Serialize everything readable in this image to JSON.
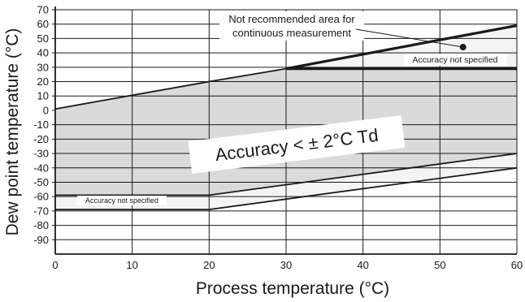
{
  "chart_data": {
    "type": "area",
    "xlabel": "Process temperature (°C)",
    "ylabel": "Dew point temperature (°C)",
    "xlim": [
      0,
      60
    ],
    "ylim": [
      -100,
      70
    ],
    "x_ticks": [
      0,
      10,
      20,
      30,
      40,
      50,
      60
    ],
    "y_ticks": [
      70,
      60,
      50,
      40,
      30,
      20,
      10,
      0,
      -10,
      -20,
      -30,
      -40,
      -50,
      -60,
      -70,
      -80,
      -90
    ],
    "grid": true,
    "regions": [
      {
        "label": "Accuracy < ± 2°C Td",
        "color": "#dadada",
        "points": [
          [
            0,
            1
          ],
          [
            20,
            20
          ],
          [
            30,
            29
          ],
          [
            60,
            29
          ],
          [
            60,
            -30
          ],
          [
            20,
            -59
          ],
          [
            0,
            -59
          ]
        ]
      },
      {
        "label": "Accuracy not specified",
        "position": "top-right",
        "color": "#f4f4f4",
        "points": [
          [
            30,
            29
          ],
          [
            60,
            59
          ],
          [
            60,
            29
          ]
        ]
      },
      {
        "label": "Accuracy not specified",
        "position": "bottom-left",
        "color": "#f4f4f4",
        "points": [
          [
            0,
            -59
          ],
          [
            20,
            -59
          ],
          [
            60,
            -30
          ],
          [
            60,
            -40
          ],
          [
            20,
            -69
          ],
          [
            0,
            -69
          ]
        ]
      }
    ],
    "lines": [
      {
        "name": "upper-limit",
        "points": [
          [
            0,
            1
          ],
          [
            20,
            20
          ],
          [
            30,
            29
          ],
          [
            60,
            59
          ]
        ]
      },
      {
        "name": "not-recommended-boundary",
        "points": [
          [
            30,
            29
          ],
          [
            60,
            59
          ]
        ],
        "emphasis": "thick"
      },
      {
        "name": "upper-accuracy-limit",
        "points": [
          [
            30,
            29
          ],
          [
            60,
            29
          ]
        ],
        "emphasis": "thick"
      },
      {
        "name": "lower-accuracy-limit",
        "points": [
          [
            0,
            -59
          ],
          [
            20,
            -59
          ],
          [
            60,
            -30
          ]
        ]
      },
      {
        "name": "lower-limit",
        "points": [
          [
            0,
            -69
          ],
          [
            20,
            -69
          ],
          [
            60,
            -40
          ]
        ]
      }
    ],
    "annotations": {
      "not_recommended": {
        "line1": "Not recommended area for",
        "line2": "continuous measurement",
        "points_to": [
          53,
          44
        ]
      },
      "main_label": "Accuracy < ± 2°C Td",
      "accuracy_not_specified_top": "Accuracy not specified",
      "accuracy_not_specified_bottom": "Accuracy not specified"
    }
  }
}
